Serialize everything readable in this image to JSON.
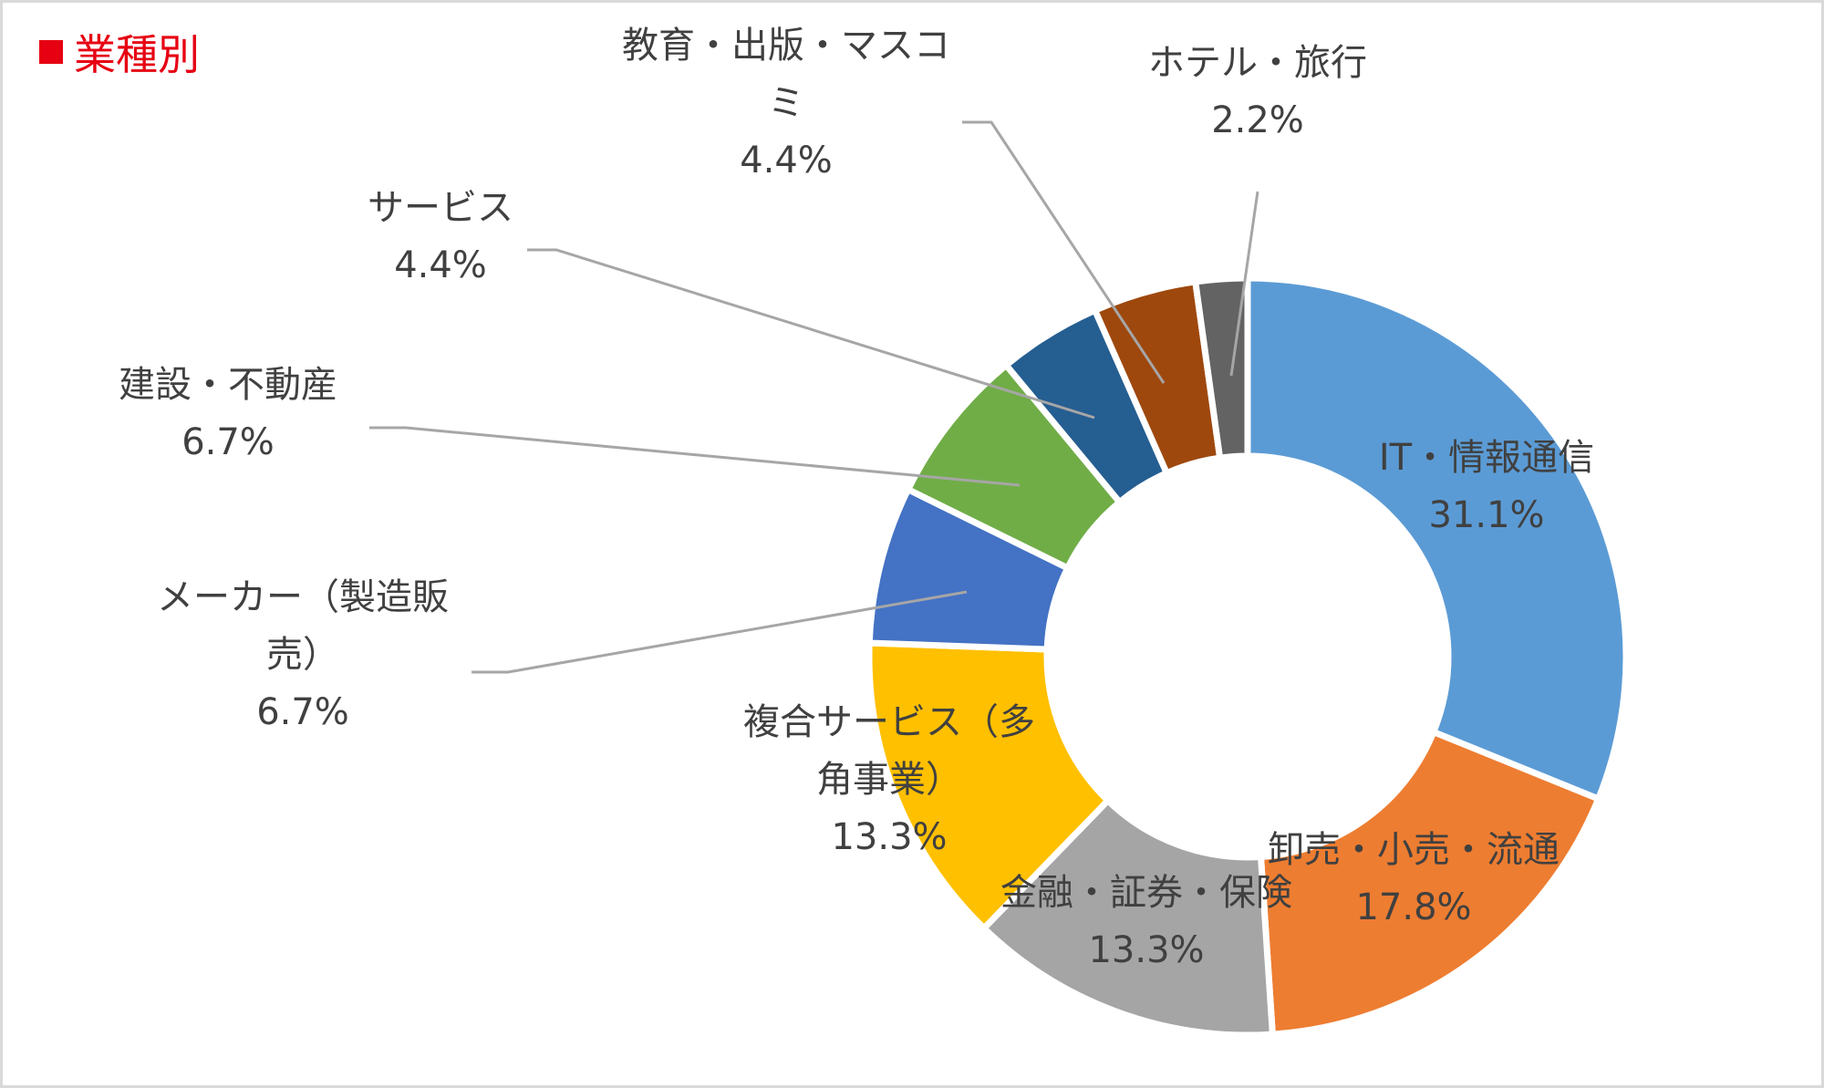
{
  "chart_data": {
    "type": "pie",
    "title": "業種別",
    "donut": true,
    "start": "top, clockwise",
    "slices": [
      {
        "label": "IT・情報通信",
        "label_lines": [
          "IT・情報通信"
        ],
        "value": 31.1,
        "display": "31.1%",
        "color": "#5b9bd5"
      },
      {
        "label": "卸売・小売・流通",
        "label_lines": [
          "卸売・小売・流通"
        ],
        "value": 17.8,
        "display": "17.8%",
        "color": "#ed7d31"
      },
      {
        "label": "金融・証券・保険",
        "label_lines": [
          "金融・証券・保険"
        ],
        "value": 13.3,
        "display": "13.3%",
        "color": "#a5a5a5"
      },
      {
        "label": "複合サービス（多角事業）",
        "label_lines": [
          "複合サービス（多",
          "角事業）"
        ],
        "value": 13.3,
        "display": "13.3%",
        "color": "#ffc000"
      },
      {
        "label": "メーカー（製造販売）",
        "label_lines": [
          "メーカー（製造販",
          "売）"
        ],
        "value": 6.7,
        "display": "6.7%",
        "color": "#4472c4"
      },
      {
        "label": "建設・不動産",
        "label_lines": [
          "建設・不動産"
        ],
        "value": 6.7,
        "display": "6.7%",
        "color": "#70ad47"
      },
      {
        "label": "サービス",
        "label_lines": [
          "サービス"
        ],
        "value": 4.4,
        "display": "4.4%",
        "color": "#255e91"
      },
      {
        "label": "教育・出版・マスコミ",
        "label_lines": [
          "教育・出版・マスコ",
          "ミ"
        ],
        "value": 4.4,
        "display": "4.4%",
        "color": "#9e480e"
      },
      {
        "label": "ホテル・旅行",
        "label_lines": [
          "ホテル・旅行"
        ],
        "value": 2.2,
        "display": "2.2%",
        "color": "#636363"
      }
    ]
  }
}
